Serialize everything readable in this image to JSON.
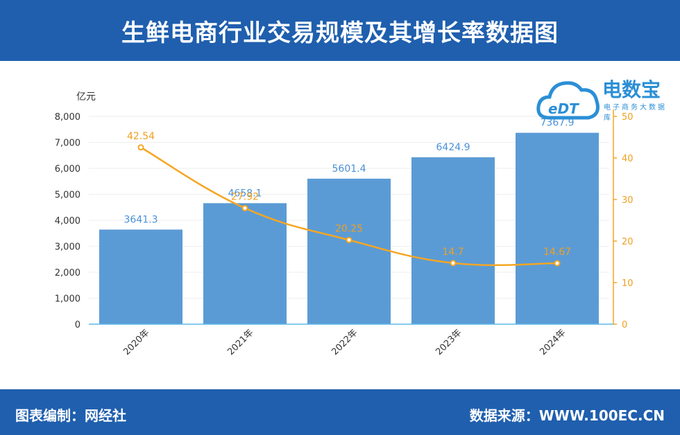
{
  "header": {
    "title": "生鲜电商行业交易规模及其增长率数据图"
  },
  "footer": {
    "compiled_by": "图表编制：网经社",
    "source": "数据来源：WWW.100EC.CN"
  },
  "logo": {
    "brand_text": "电数宝",
    "badge_text": "eDT",
    "sub_text": "电子商务大数据库"
  },
  "colors": {
    "bar": "#5b9bd5",
    "line": "#f5a623",
    "header": "#1f5fae",
    "bar_label": "#4a90d9",
    "line_label": "#f0a020"
  },
  "chart_data": {
    "type": "bar",
    "categories": [
      "2020年",
      "2021年",
      "2022年",
      "2023年",
      "2024年"
    ],
    "series": [
      {
        "values": [
          3641.3,
          4658.1,
          5601.4,
          6424.9,
          7367.9
        ],
        "labels": [
          "3641.3",
          "4658.1",
          "5601.4",
          "6424.9",
          "7367.9"
        ]
      },
      {
        "type": "line",
        "values": [
          42.54,
          27.92,
          20.25,
          14.7,
          14.67
        ],
        "labels": [
          "42.54",
          "27.92",
          "20.25",
          "14.7",
          "14.67"
        ]
      }
    ],
    "ylabel": "亿元",
    "ylim": [
      0,
      8000
    ],
    "yticks": [
      "0",
      "1,000",
      "2,000",
      "3,000",
      "4,000",
      "5,000",
      "6,000",
      "7,000",
      "8,000"
    ],
    "y2lim": [
      0,
      50
    ],
    "y2ticks": [
      "0",
      "10",
      "20",
      "30",
      "40",
      "50"
    ],
    "grid": true
  }
}
